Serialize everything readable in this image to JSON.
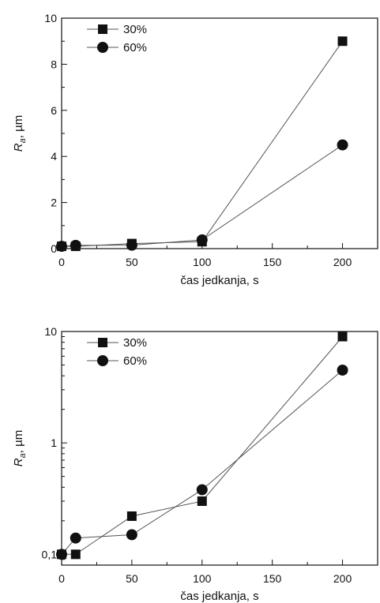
{
  "chart_data": [
    {
      "type": "line",
      "xscale": "linear",
      "yscale": "linear",
      "x": [
        0,
        10,
        50,
        100,
        200
      ],
      "xlim": [
        0,
        225
      ],
      "ylim": [
        0,
        10
      ],
      "xticks": [
        0,
        50,
        100,
        150,
        200
      ],
      "xtick_labels": [
        "0",
        "50",
        "100",
        "150",
        "200"
      ],
      "yticks": [
        0,
        2,
        4,
        6,
        8,
        10
      ],
      "ytick_labels": [
        "0",
        "2",
        "4",
        "6",
        "8",
        "10"
      ],
      "xlabel": "čas jedkanja, s",
      "ylabel_main": "R",
      "ylabel_sub": "a",
      "ylabel_rest": ", µm",
      "grid": false,
      "legend_position": "top-left",
      "series": [
        {
          "name": "30%",
          "marker": "square",
          "values": [
            0.1,
            0.1,
            0.22,
            0.3,
            9.0
          ]
        },
        {
          "name": "60%",
          "marker": "circle",
          "values": [
            0.1,
            0.14,
            0.15,
            0.38,
            4.5
          ]
        }
      ]
    },
    {
      "type": "line",
      "xscale": "linear",
      "yscale": "log",
      "x": [
        0,
        10,
        50,
        100,
        200
      ],
      "xlim": [
        0,
        225
      ],
      "ylim": [
        0.08,
        10
      ],
      "xticks": [
        0,
        50,
        100,
        150,
        200
      ],
      "xtick_labels": [
        "0",
        "50",
        "100",
        "150",
        "200"
      ],
      "yticks": [
        0.1,
        1,
        10
      ],
      "ytick_labels": [
        "0,1",
        "1",
        "10"
      ],
      "xlabel": "čas jedkanja, s",
      "ylabel_main": "R",
      "ylabel_sub": "a",
      "ylabel_rest": ", µm",
      "grid": false,
      "legend_position": "top-left",
      "series": [
        {
          "name": "30%",
          "marker": "square",
          "values": [
            0.1,
            0.1,
            0.22,
            0.3,
            9.0
          ]
        },
        {
          "name": "60%",
          "marker": "circle",
          "values": [
            0.1,
            0.14,
            0.15,
            0.38,
            4.5
          ]
        }
      ]
    }
  ]
}
